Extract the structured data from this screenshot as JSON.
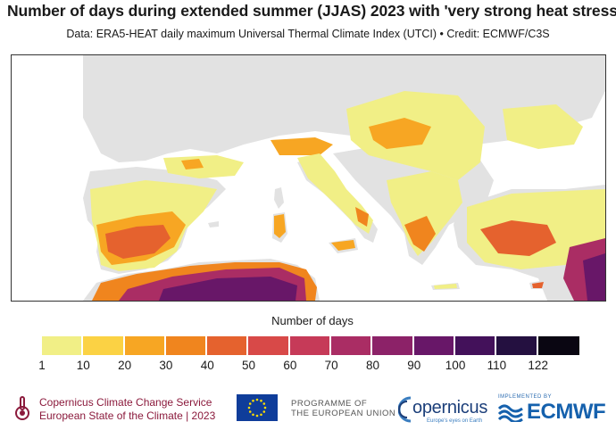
{
  "title": "Number of days during extended summer (JJAS) 2023 with 'very strong heat stress'",
  "subtitle": "Data: ERA5-HEAT daily maximum Universal Thermal Climate Index (UTCI) • Credit: ECMWF/C3S",
  "legend": {
    "title": "Number of days",
    "ticks": [
      "1",
      "10",
      "20",
      "30",
      "40",
      "50",
      "60",
      "70",
      "80",
      "90",
      "100",
      "110",
      "122"
    ],
    "tick_values": [
      1,
      10,
      20,
      30,
      40,
      50,
      60,
      70,
      80,
      90,
      100,
      110,
      122
    ],
    "colors": [
      "#f1ef86",
      "#fbd244",
      "#f7a623",
      "#f0851e",
      "#e5622e",
      "#d84948",
      "#c63a58",
      "#aa2d64",
      "#8c2268",
      "#681768",
      "#43115a",
      "#241040",
      "#0a0612"
    ]
  },
  "map_colors": {
    "land_no_days": "#e2e2e2",
    "sea": "#ffffff",
    "border": "#ffffff"
  },
  "footer": {
    "c3s_line1": "Copernicus Climate Change Service",
    "c3s_line2": "European State of the Climate | 2023",
    "eu_line1": "PROGRAMME OF",
    "eu_line2": "THE EUROPEAN UNION",
    "copernicus": "opernicus",
    "copernicus_tagline": "Europe's eyes on Earth",
    "ecmwf_small": "IMPLEMENTED BY",
    "ecmwf": "ECMWF"
  }
}
